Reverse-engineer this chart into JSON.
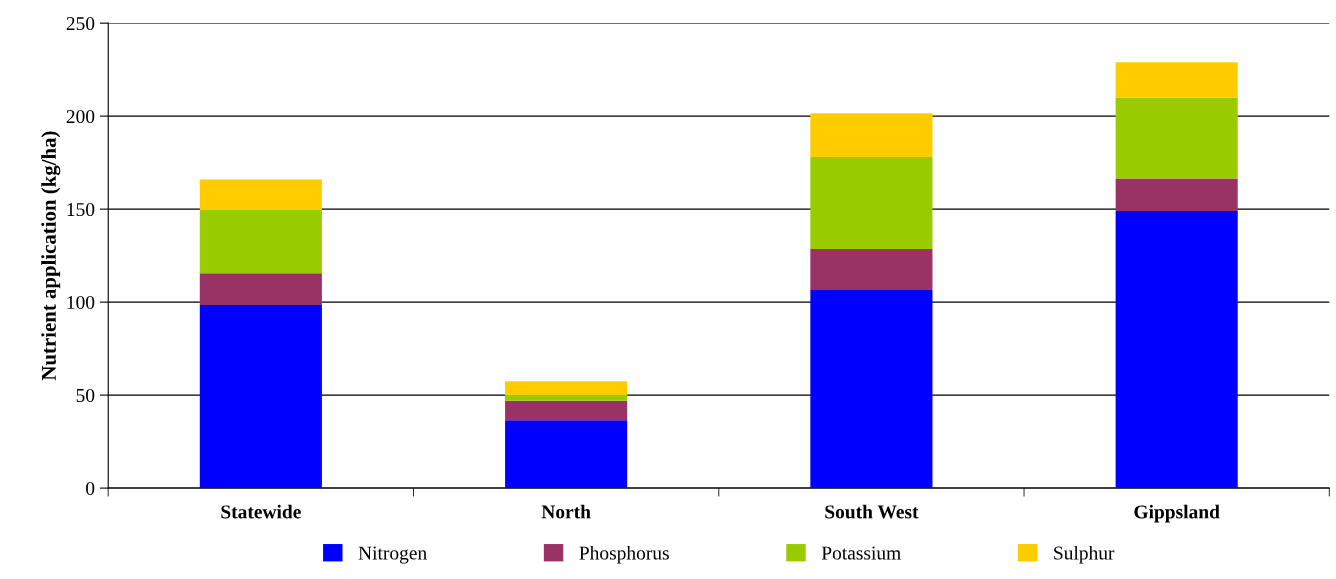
{
  "chart_data": {
    "type": "bar",
    "stacked": true,
    "ylabel": "Nutrient application (kg/ha)",
    "categories": [
      "Statewide",
      "North",
      "South West",
      "Gippsland"
    ],
    "series": [
      {
        "name": "Nitrogen",
        "color": "#0000ff",
        "values": [
          98.5,
          36.5,
          106.5,
          149
        ]
      },
      {
        "name": "Phosphorus",
        "color": "#993366",
        "values": [
          17,
          10.5,
          22,
          17.5
        ]
      },
      {
        "name": "Potassium",
        "color": "#99cc00",
        "values": [
          34,
          3,
          49.5,
          43.5
        ]
      },
      {
        "name": "Sulphur",
        "color": "#ffcc00",
        "values": [
          16.5,
          7.5,
          23.5,
          19
        ]
      }
    ],
    "ylim": [
      0,
      250
    ],
    "yticks": [
      0,
      50,
      100,
      150,
      200,
      250
    ],
    "grid": "y",
    "legend": "bottom"
  }
}
